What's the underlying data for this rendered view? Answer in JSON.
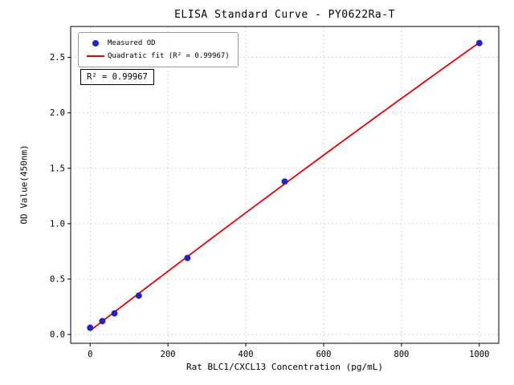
{
  "chart_data": {
    "type": "scatter",
    "title": "ELISA Standard Curve - PY0622Ra-T",
    "xlabel": "Rat BLC1/CXCL13 Concentration (pg/mL)",
    "ylabel": "OD Value(450nm)",
    "x": [
      0,
      31.25,
      62.5,
      125,
      250,
      500,
      1000
    ],
    "y": [
      0.06,
      0.12,
      0.19,
      0.35,
      0.69,
      1.38,
      2.63
    ],
    "series": [
      {
        "name": "Measured OD",
        "type": "scatter"
      },
      {
        "name": "Quadratic fit (R² = 0.99967)",
        "type": "line"
      }
    ],
    "fit": {
      "kind": "quadratic",
      "r_squared": 0.99967
    },
    "annotation": "R² = 0.99967",
    "xticks": [
      0,
      200,
      400,
      600,
      800,
      1000
    ],
    "yticks": [
      0.0,
      0.5,
      1.0,
      1.5,
      2.0,
      2.5
    ],
    "xtick_labels": [
      "0",
      "200",
      "400",
      "600",
      "800",
      "1000"
    ],
    "ytick_labels": [
      "0.0",
      "0.5",
      "1.0",
      "1.5",
      "2.0",
      "2.5"
    ],
    "xlim": [
      -50,
      1050
    ],
    "ylim": [
      -0.08,
      2.78
    ],
    "grid": true,
    "legend_position": "upper-left",
    "colors": {
      "points": "#2222cc",
      "line": "#e60000",
      "grid": "#c9c9c9",
      "spine": "#000000"
    }
  }
}
